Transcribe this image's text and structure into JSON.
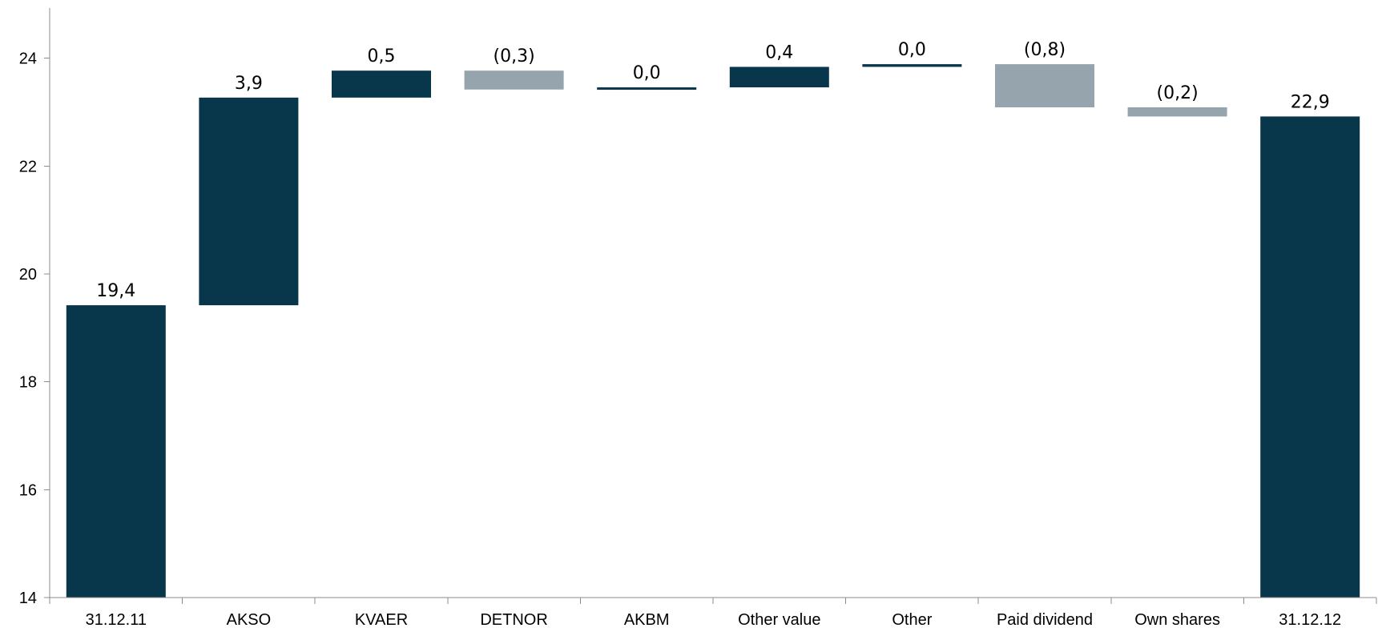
{
  "chart_data": {
    "type": "bar",
    "subtype": "waterfall",
    "title": "",
    "xlabel": "",
    "ylabel": "",
    "ylim": [
      14,
      25
    ],
    "yticks": [
      14,
      16,
      18,
      20,
      22,
      24
    ],
    "ytick_labels": [
      "14",
      "16",
      "18",
      "20",
      "22",
      "24"
    ],
    "grid": false,
    "legend": "none",
    "colors": {
      "increase": "#08364a",
      "decrease": "#95a4ad",
      "total": "#08364a",
      "axis": "#8c8c8c"
    },
    "categories": [
      "31.12.11",
      "AKSO",
      "KVAER",
      "DETNOR",
      "AKBM",
      "Other value",
      "Other",
      "Paid dividend",
      "Own shares",
      "31.12.12"
    ],
    "bars": [
      {
        "category": "31.12.11",
        "kind": "total",
        "start": 0,
        "end": 19.42,
        "label": "19,4"
      },
      {
        "category": "AKSO",
        "kind": "increase",
        "start": 19.42,
        "end": 23.27,
        "label": "3,9"
      },
      {
        "category": "KVAER",
        "kind": "increase",
        "start": 23.27,
        "end": 23.77,
        "label": "0,5"
      },
      {
        "category": "DETNOR",
        "kind": "decrease",
        "start": 23.77,
        "end": 23.42,
        "label": "(0,3)"
      },
      {
        "category": "AKBM",
        "kind": "increase",
        "start": 23.42,
        "end": 23.46,
        "label": "0,0"
      },
      {
        "category": "Other value",
        "kind": "increase",
        "start": 23.46,
        "end": 23.84,
        "label": "0,4"
      },
      {
        "category": "Other",
        "kind": "increase",
        "start": 23.84,
        "end": 23.89,
        "label": "0,0"
      },
      {
        "category": "Paid dividend",
        "kind": "decrease",
        "start": 23.89,
        "end": 23.09,
        "label": "(0,8)"
      },
      {
        "category": "Own shares",
        "kind": "decrease",
        "start": 23.09,
        "end": 22.92,
        "label": "(0,2)"
      },
      {
        "category": "31.12.12",
        "kind": "total",
        "start": 0,
        "end": 22.92,
        "label": "22,9"
      }
    ]
  }
}
